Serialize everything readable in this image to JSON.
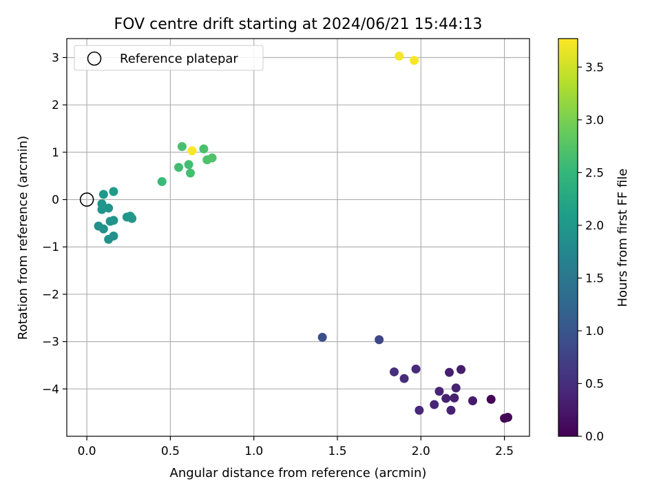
{
  "chart_data": {
    "type": "scatter",
    "title": "FOV centre drift starting at 2024/06/21 15:44:13",
    "xlabel": "Angular distance from reference (arcmin)",
    "ylabel": "Rotation from reference (arcmin)",
    "colorbar_label": "Hours from first FF file",
    "colormap": "viridis",
    "xlim": [
      -0.12,
      2.65
    ],
    "ylim": [
      -5.0,
      3.4
    ],
    "clim": [
      0.0,
      3.77
    ],
    "xticks": [
      0.0,
      0.5,
      1.0,
      1.5,
      2.0,
      2.5
    ],
    "xtick_labels": [
      "0.0",
      "0.5",
      "1.0",
      "1.5",
      "2.0",
      "2.5"
    ],
    "yticks": [
      -4,
      -3,
      -2,
      -1,
      0,
      1,
      2,
      3
    ],
    "ytick_labels": [
      "−4",
      "−3",
      "−2",
      "−1",
      "0",
      "1",
      "2",
      "3"
    ],
    "cticks": [
      0.0,
      0.5,
      1.0,
      1.5,
      2.0,
      2.5,
      3.0,
      3.5
    ],
    "ctick_labels": [
      "0.0",
      "0.5",
      "1.0",
      "1.5",
      "2.0",
      "2.5",
      "3.0",
      "3.5"
    ],
    "grid": true,
    "legend": {
      "location": "upper-left",
      "label": "Reference platepar"
    },
    "reference_point": {
      "x": 0.0,
      "y": 0.0
    },
    "points": [
      {
        "x": 2.42,
        "y": -4.22,
        "c": 0.02
      },
      {
        "x": 2.5,
        "y": -4.62,
        "c": 0.03
      },
      {
        "x": 2.52,
        "y": -4.6,
        "c": 0.04
      },
      {
        "x": 2.31,
        "y": -4.25,
        "c": 0.28
      },
      {
        "x": 2.24,
        "y": -3.59,
        "c": 0.3
      },
      {
        "x": 2.17,
        "y": -3.65,
        "c": 0.32
      },
      {
        "x": 2.2,
        "y": -4.19,
        "c": 0.33
      },
      {
        "x": 2.15,
        "y": -4.2,
        "c": 0.34
      },
      {
        "x": 2.18,
        "y": -4.45,
        "c": 0.35
      },
      {
        "x": 2.21,
        "y": -3.98,
        "c": 0.36
      },
      {
        "x": 2.11,
        "y": -4.05,
        "c": 0.38
      },
      {
        "x": 2.08,
        "y": -4.33,
        "c": 0.4
      },
      {
        "x": 1.99,
        "y": -4.45,
        "c": 0.42
      },
      {
        "x": 1.97,
        "y": -3.58,
        "c": 0.45
      },
      {
        "x": 1.9,
        "y": -3.78,
        "c": 0.47
      },
      {
        "x": 1.84,
        "y": -3.64,
        "c": 0.52
      },
      {
        "x": 1.75,
        "y": -2.96,
        "c": 0.82
      },
      {
        "x": 1.41,
        "y": -2.91,
        "c": 0.92
      },
      {
        "x": 0.07,
        "y": -0.56,
        "c": 1.88
      },
      {
        "x": 0.1,
        "y": -0.62,
        "c": 1.9
      },
      {
        "x": 0.13,
        "y": -0.84,
        "c": 1.9
      },
      {
        "x": 0.16,
        "y": -0.77,
        "c": 1.92
      },
      {
        "x": 0.14,
        "y": -0.46,
        "c": 1.93
      },
      {
        "x": 0.16,
        "y": -0.44,
        "c": 1.94
      },
      {
        "x": 0.13,
        "y": -0.18,
        "c": 1.95
      },
      {
        "x": 0.09,
        "y": -0.21,
        "c": 1.96
      },
      {
        "x": 0.09,
        "y": -0.09,
        "c": 1.97
      },
      {
        "x": 0.24,
        "y": -0.37,
        "c": 1.98
      },
      {
        "x": 0.26,
        "y": -0.35,
        "c": 1.99
      },
      {
        "x": 0.27,
        "y": -0.4,
        "c": 2.0
      },
      {
        "x": 0.1,
        "y": 0.11,
        "c": 2.02
      },
      {
        "x": 0.16,
        "y": 0.17,
        "c": 2.05
      },
      {
        "x": 0.45,
        "y": 0.38,
        "c": 2.55
      },
      {
        "x": 0.55,
        "y": 0.68,
        "c": 2.6
      },
      {
        "x": 0.61,
        "y": 0.74,
        "c": 2.62
      },
      {
        "x": 0.62,
        "y": 0.56,
        "c": 2.64
      },
      {
        "x": 0.57,
        "y": 1.12,
        "c": 2.66
      },
      {
        "x": 0.7,
        "y": 1.07,
        "c": 2.68
      },
      {
        "x": 0.72,
        "y": 0.84,
        "c": 2.7
      },
      {
        "x": 0.75,
        "y": 0.88,
        "c": 2.72
      },
      {
        "x": 1.87,
        "y": 3.03,
        "c": 3.72
      },
      {
        "x": 1.96,
        "y": 2.94,
        "c": 3.74
      },
      {
        "x": 0.63,
        "y": 1.03,
        "c": 3.76
      }
    ]
  }
}
